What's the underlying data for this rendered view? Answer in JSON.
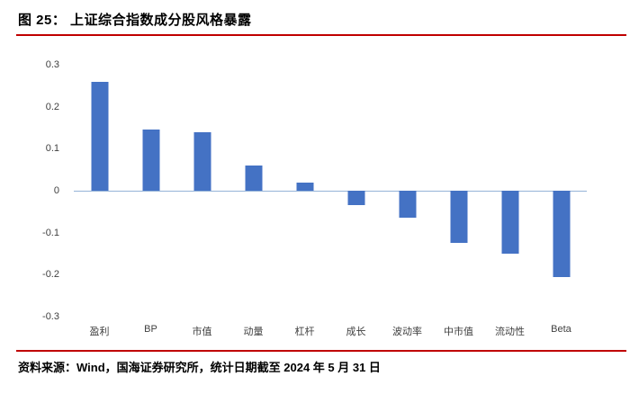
{
  "header": {
    "title": "图 25： 上证综合指数成分股风格暴露"
  },
  "footer": {
    "source": "资料来源：Wind，国海证券研究所，统计日期截至 2024 年 5 月 31 日"
  },
  "colors": {
    "accent_red": "#C00000",
    "bar_blue": "#4472C4",
    "zero_axis": "#95B3D7",
    "tick_text": "#404040"
  },
  "chart_data": {
    "type": "bar",
    "title": "",
    "xlabel": "",
    "ylabel": "",
    "categories": [
      "盈利",
      "BP",
      "市值",
      "动量",
      "杠杆",
      "成长",
      "波动率",
      "中市值",
      "流动性",
      "Beta"
    ],
    "values": [
      0.26,
      0.145,
      0.14,
      0.06,
      0.02,
      -0.035,
      -0.065,
      -0.125,
      -0.15,
      -0.205
    ],
    "ylim": [
      -0.3,
      0.3
    ],
    "yticks": [
      {
        "value": 0.3,
        "label": "0.3"
      },
      {
        "value": 0.2,
        "label": "0.2"
      },
      {
        "value": 0.1,
        "label": "0.1"
      },
      {
        "value": 0,
        "label": "0"
      },
      {
        "value": -0.1,
        "label": "-0.1"
      },
      {
        "value": -0.2,
        "label": "-0.2"
      },
      {
        "value": -0.3,
        "label": "-0.3"
      }
    ],
    "grid": false,
    "legend": "none",
    "bar_color": "#4472C4"
  }
}
